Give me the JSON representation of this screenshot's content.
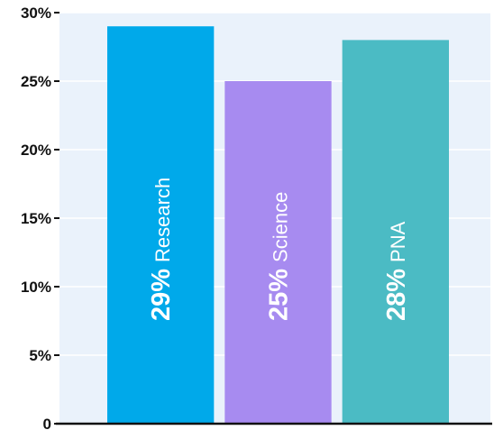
{
  "chart_data": {
    "type": "bar",
    "categories": [
      "Research",
      "Science",
      "PNA"
    ],
    "values": [
      29,
      25,
      28
    ],
    "value_labels": [
      "29%",
      "25%",
      "28%"
    ],
    "title": "",
    "xlabel": "",
    "ylabel": "",
    "ylim": [
      0,
      30
    ],
    "yticks": [
      0,
      5,
      10,
      15,
      20,
      25,
      30
    ],
    "ytick_labels": [
      "0",
      "5%",
      "10%",
      "15%",
      "20%",
      "25%",
      "30%"
    ],
    "grid": true,
    "legend": "none",
    "colors": {
      "bars": [
        "#00a9ea",
        "#a78bf0",
        "#4bbbc4"
      ],
      "plot_background": "#eaf2fb",
      "grid": "#ffffff",
      "axis": "#111111",
      "label_text": "#ffffff"
    }
  }
}
